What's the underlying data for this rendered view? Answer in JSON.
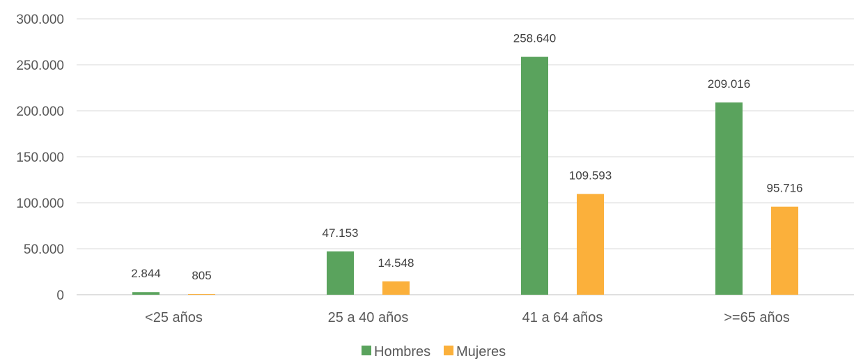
{
  "chart_data": {
    "type": "bar",
    "title": "",
    "xlabel": "",
    "ylabel": "",
    "categories": [
      "<25 años",
      "25 a 40 años",
      "41 a 64 años",
      ">=65 años"
    ],
    "series": [
      {
        "name": "Hombres",
        "values": [
          2844,
          47153,
          258640,
          209016
        ],
        "labels": [
          "2.844",
          "47.153",
          "258.640",
          "209.016"
        ],
        "color": "#5aa35d"
      },
      {
        "name": "Mujeres",
        "values": [
          805,
          14548,
          109593,
          95716
        ],
        "labels": [
          "805",
          "14.548",
          "109.593",
          "95.716"
        ],
        "color": "#fbb03b"
      }
    ],
    "ylim": [
      0,
      300000
    ],
    "yticks": [
      0,
      50000,
      100000,
      150000,
      200000,
      250000,
      300000
    ],
    "ytick_labels": [
      "0",
      "50.000",
      "100.000",
      "150.000",
      "200.000",
      "250.000",
      "300.000"
    ],
    "grid": true,
    "legend_position": "bottom"
  }
}
